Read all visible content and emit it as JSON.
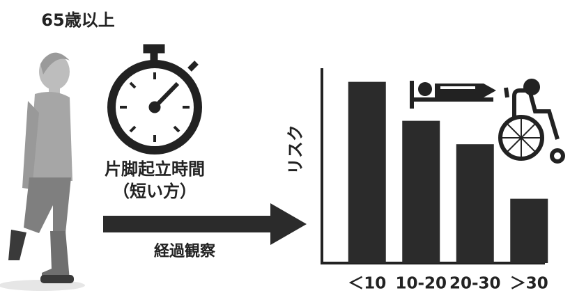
{
  "heading": "65歳以上",
  "stopwatch_label": [
    "片脚起立時間",
    "（短い方）"
  ],
  "arrow_label": "経過観察",
  "chart_data": {
    "type": "bar",
    "y_label": "リスク",
    "categories": [
      "＜10",
      "10-20",
      "20-30",
      "＞30"
    ],
    "values": [
      93,
      73,
      61,
      33
    ],
    "color": "#2b2b2b",
    "ylim": [
      0,
      100
    ]
  }
}
